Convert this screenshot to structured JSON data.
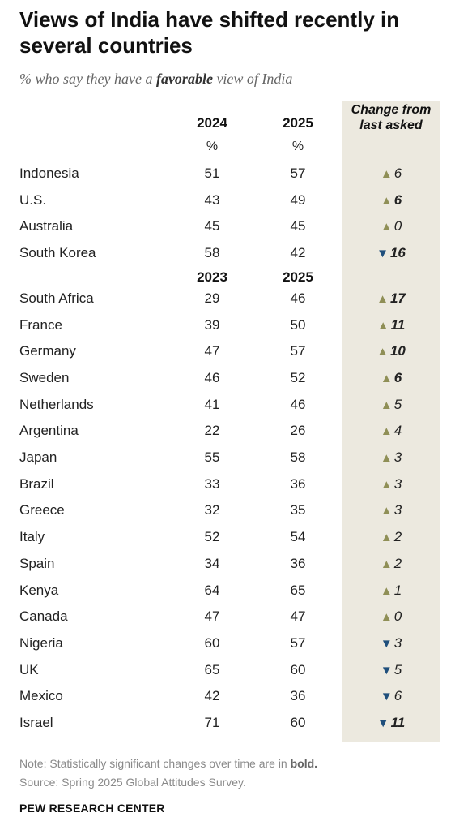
{
  "title": "Views of India have shifted recently in several countries",
  "subtitle": {
    "before": "% who say they have a ",
    "emphasis": "favorable",
    "after": " view of India"
  },
  "note": {
    "text": "Note: Statistically significant changes over time are in ",
    "bold": "bold."
  },
  "source": "Source: Spring 2025 Global Attitudes Survey.",
  "logo": "PEW RESEARCH CENTER",
  "colors": {
    "up": "#8f8f56",
    "down": "#1f4f7c",
    "band": "#ece9df"
  },
  "chart_data": {
    "type": "table",
    "change_header": "Change from last asked",
    "groups": [
      {
        "col1": "2024",
        "col2": "2025",
        "unit1": "%",
        "unit2": "%",
        "rows": [
          {
            "country": "Indonesia",
            "v1": 51,
            "v2": 57,
            "change": 6,
            "direction": "up",
            "significant": false
          },
          {
            "country": "U.S.",
            "v1": 43,
            "v2": 49,
            "change": 6,
            "direction": "up",
            "significant": true
          },
          {
            "country": "Australia",
            "v1": 45,
            "v2": 45,
            "change": 0,
            "direction": "up",
            "significant": false
          },
          {
            "country": "South Korea",
            "v1": 58,
            "v2": 42,
            "change": 16,
            "direction": "down",
            "significant": true
          }
        ]
      },
      {
        "col1": "2023",
        "col2": "2025",
        "unit1": "",
        "unit2": "",
        "rows": [
          {
            "country": "South Africa",
            "v1": 29,
            "v2": 46,
            "change": 17,
            "direction": "up",
            "significant": true
          },
          {
            "country": "France",
            "v1": 39,
            "v2": 50,
            "change": 11,
            "direction": "up",
            "significant": true
          },
          {
            "country": "Germany",
            "v1": 47,
            "v2": 57,
            "change": 10,
            "direction": "up",
            "significant": true
          },
          {
            "country": "Sweden",
            "v1": 46,
            "v2": 52,
            "change": 6,
            "direction": "up",
            "significant": true
          },
          {
            "country": "Netherlands",
            "v1": 41,
            "v2": 46,
            "change": 5,
            "direction": "up",
            "significant": false
          },
          {
            "country": "Argentina",
            "v1": 22,
            "v2": 26,
            "change": 4,
            "direction": "up",
            "significant": false
          },
          {
            "country": "Japan",
            "v1": 55,
            "v2": 58,
            "change": 3,
            "direction": "up",
            "significant": false
          },
          {
            "country": "Brazil",
            "v1": 33,
            "v2": 36,
            "change": 3,
            "direction": "up",
            "significant": false
          },
          {
            "country": "Greece",
            "v1": 32,
            "v2": 35,
            "change": 3,
            "direction": "up",
            "significant": false
          },
          {
            "country": "Italy",
            "v1": 52,
            "v2": 54,
            "change": 2,
            "direction": "up",
            "significant": false
          },
          {
            "country": "Spain",
            "v1": 34,
            "v2": 36,
            "change": 2,
            "direction": "up",
            "significant": false
          },
          {
            "country": "Kenya",
            "v1": 64,
            "v2": 65,
            "change": 1,
            "direction": "up",
            "significant": false
          },
          {
            "country": "Canada",
            "v1": 47,
            "v2": 47,
            "change": 0,
            "direction": "up",
            "significant": false
          },
          {
            "country": "Nigeria",
            "v1": 60,
            "v2": 57,
            "change": 3,
            "direction": "down",
            "significant": false
          },
          {
            "country": "UK",
            "v1": 65,
            "v2": 60,
            "change": 5,
            "direction": "down",
            "significant": false
          },
          {
            "country": "Mexico",
            "v1": 42,
            "v2": 36,
            "change": 6,
            "direction": "down",
            "significant": false
          },
          {
            "country": "Israel",
            "v1": 71,
            "v2": 60,
            "change": 11,
            "direction": "down",
            "significant": true
          }
        ]
      }
    ]
  }
}
